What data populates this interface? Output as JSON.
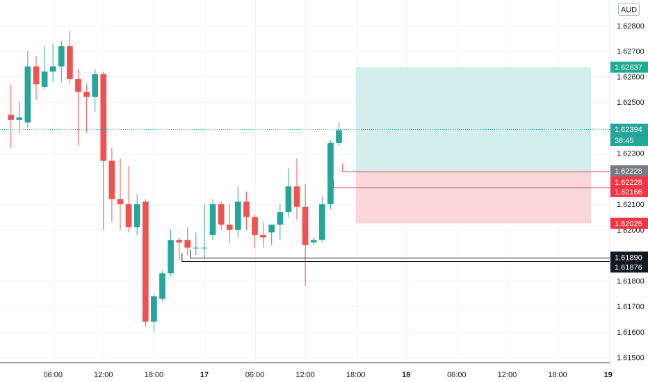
{
  "chart_data": {
    "type": "candlestick",
    "currency": "AUD",
    "price_axis": {
      "ylim": [
        1.6148,
        1.629
      ],
      "ticks": [
        {
          "value": 1.628,
          "label": "1.62800"
        },
        {
          "value": 1.627,
          "label": "1.62700"
        },
        {
          "value": 1.626,
          "label": "1.62600"
        },
        {
          "value": 1.625,
          "label": "1.62500"
        },
        {
          "value": 1.623,
          "label": "1.62300"
        },
        {
          "value": 1.621,
          "label": "1.62100"
        },
        {
          "value": 1.62,
          "label": "1.62000"
        },
        {
          "value": 1.618,
          "label": "1.61800"
        },
        {
          "value": 1.617,
          "label": "1.61700"
        },
        {
          "value": 1.616,
          "label": "1.61600"
        },
        {
          "value": 1.615,
          "label": "1.61500"
        }
      ]
    },
    "time_axis": {
      "slot_range": [
        -3.3,
        69.2
      ],
      "ticks": [
        {
          "slot": 3,
          "label": "06:00",
          "bold": false
        },
        {
          "slot": 9,
          "label": "12:00",
          "bold": false
        },
        {
          "slot": 15,
          "label": "18:00",
          "bold": false
        },
        {
          "slot": 21,
          "label": "17",
          "bold": true
        },
        {
          "slot": 27,
          "label": "06:00",
          "bold": false
        },
        {
          "slot": 33,
          "label": "12:00",
          "bold": false
        },
        {
          "slot": 39,
          "label": "18:00",
          "bold": false
        },
        {
          "slot": 45,
          "label": "18",
          "bold": true
        },
        {
          "slot": 51,
          "label": "06:00",
          "bold": false
        },
        {
          "slot": 57,
          "label": "12:00",
          "bold": false
        },
        {
          "slot": 63,
          "label": "18:00",
          "bold": false
        },
        {
          "slot": 69,
          "label": "19",
          "bold": true
        }
      ]
    },
    "candles": [
      [
        -2,
        1.6245,
        1.6257,
        1.6232,
        1.6243
      ],
      [
        -1,
        1.6243,
        1.625,
        1.6238,
        1.6244
      ],
      [
        0,
        1.6242,
        1.627,
        1.624,
        1.6264
      ],
      [
        1,
        1.6264,
        1.6268,
        1.6251,
        1.6257
      ],
      [
        2,
        1.6256,
        1.6272,
        1.6255,
        1.6262
      ],
      [
        3,
        1.6262,
        1.6273,
        1.6258,
        1.6264
      ],
      [
        4,
        1.6264,
        1.6274,
        1.6258,
        1.6272
      ],
      [
        5,
        1.6272,
        1.6278,
        1.6257,
        1.6259
      ],
      [
        6,
        1.6259,
        1.6263,
        1.6233,
        1.6254
      ],
      [
        7,
        1.6254,
        1.6257,
        1.6238,
        1.6252
      ],
      [
        8,
        1.6252,
        1.6263,
        1.6246,
        1.6261
      ],
      [
        9,
        1.6261,
        1.6262,
        1.62,
        1.6227
      ],
      [
        10,
        1.6227,
        1.6232,
        1.6203,
        1.6212
      ],
      [
        11,
        1.6212,
        1.6228,
        1.62,
        1.621
      ],
      [
        12,
        1.621,
        1.6225,
        1.6199,
        1.6201
      ],
      [
        13,
        1.6201,
        1.6214,
        1.6198,
        1.621
      ],
      [
        14,
        1.6211,
        1.6212,
        1.6162,
        1.6164
      ],
      [
        15,
        1.6164,
        1.6175,
        1.616,
        1.6174
      ],
      [
        16,
        1.6173,
        1.6184,
        1.6172,
        1.6183
      ],
      [
        17,
        1.6183,
        1.62,
        1.6182,
        1.6196
      ],
      [
        18,
        1.6196,
        1.6197,
        1.6188,
        1.6195
      ],
      [
        19,
        1.6196,
        1.6201,
        1.619,
        1.6193
      ],
      [
        20,
        1.6193,
        1.6199,
        1.619,
        1.6193
      ],
      [
        21,
        1.6193,
        1.621,
        1.6189,
        1.6193
      ],
      [
        22,
        1.6198,
        1.6212,
        1.6196,
        1.621
      ],
      [
        23,
        1.621,
        1.6211,
        1.62,
        1.6202
      ],
      [
        24,
        1.6202,
        1.621,
        1.6195,
        1.62
      ],
      [
        25,
        1.62,
        1.6217,
        1.6197,
        1.6211
      ],
      [
        26,
        1.6211,
        1.6215,
        1.62,
        1.6205
      ],
      [
        27,
        1.6205,
        1.6206,
        1.6193,
        1.6198
      ],
      [
        28,
        1.6198,
        1.6203,
        1.6193,
        1.6197
      ],
      [
        29,
        1.6199,
        1.6201,
        1.6194,
        1.6202
      ],
      [
        30,
        1.6202,
        1.621,
        1.6196,
        1.6207
      ],
      [
        31,
        1.6207,
        1.6224,
        1.6205,
        1.6217
      ],
      [
        32,
        1.6217,
        1.6228,
        1.6204,
        1.6209
      ],
      [
        33,
        1.6209,
        1.6218,
        1.6178,
        1.6194
      ],
      [
        34,
        1.6195,
        1.6197,
        1.6194,
        1.6196
      ],
      [
        35,
        1.6196,
        1.6213,
        1.6195,
        1.621
      ],
      [
        36,
        1.621,
        1.6235,
        1.6208,
        1.6234
      ],
      [
        37,
        1.6234,
        1.6242,
        1.6233,
        1.6239
      ]
    ],
    "current_price": {
      "value": 1.62394,
      "label": "1.62394",
      "countdown": "38:45"
    },
    "position": {
      "slot_start": 39,
      "slot_end": 67,
      "target": {
        "value": 1.62637,
        "label": "1.62637"
      },
      "entry": {
        "value": 1.62228,
        "label": "1.62228"
      },
      "stop": {
        "value": 1.62025,
        "label": "1.62025"
      }
    },
    "horizontal_levels": [
      {
        "value": 1.62228,
        "label": "1.62228",
        "color": "#f23645",
        "slot_from": 37.4
      },
      {
        "value": 1.62166,
        "label": "1.62166",
        "color": "#f23645",
        "slot_from": 36.3
      },
      {
        "value": 1.6189,
        "label": "1.61890",
        "color": "#131722",
        "slot_from": 19.3
      },
      {
        "value": 1.61876,
        "label": "1.61876",
        "color": "#131722",
        "slot_from": 18.3
      }
    ],
    "colors": {
      "up": "#26a69a",
      "down": "#ef5350",
      "grid": "#f0f3fa",
      "target_zone": "#d3efec",
      "stop_zone": "#f9d7d9",
      "target_tag": "#22ab94",
      "stop_tag": "#f23645",
      "entry_tag": "#787b86",
      "level_tag": "#131722",
      "last_price": "#26a69a"
    }
  }
}
